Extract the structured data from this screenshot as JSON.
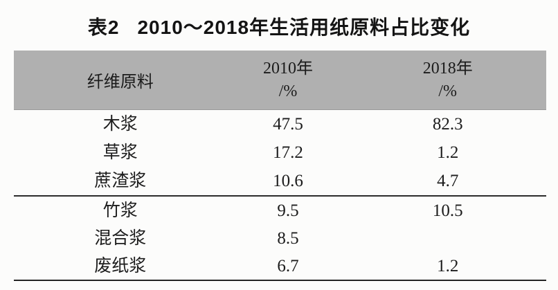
{
  "title": {
    "tag": "表2",
    "text": "2010～2018年生活用纸原料占比变化"
  },
  "table": {
    "header": {
      "material": "纤维原料",
      "col2010_line1": "2010年",
      "col2010_line2": "/%",
      "col2018_line1": "2018年",
      "col2018_line2": "/%"
    },
    "rows": [
      {
        "material": "木浆",
        "y2010": "47.5",
        "y2018": "82.3"
      },
      {
        "material": "草浆",
        "y2010": "17.2",
        "y2018": "1.2"
      },
      {
        "material": "蔗渣浆",
        "y2010": "10.6",
        "y2018": "4.7"
      },
      {
        "material": "竹浆",
        "y2010": "9.5",
        "y2018": "10.5"
      },
      {
        "material": "混合浆",
        "y2010": "8.5",
        "y2018": ""
      },
      {
        "material": "废纸浆",
        "y2010": "6.7",
        "y2018": "1.2"
      }
    ],
    "colors": {
      "header_bg": "#b0b0b0",
      "rule": "#2b2b2b",
      "page_bg": "#fcfcfb"
    }
  }
}
